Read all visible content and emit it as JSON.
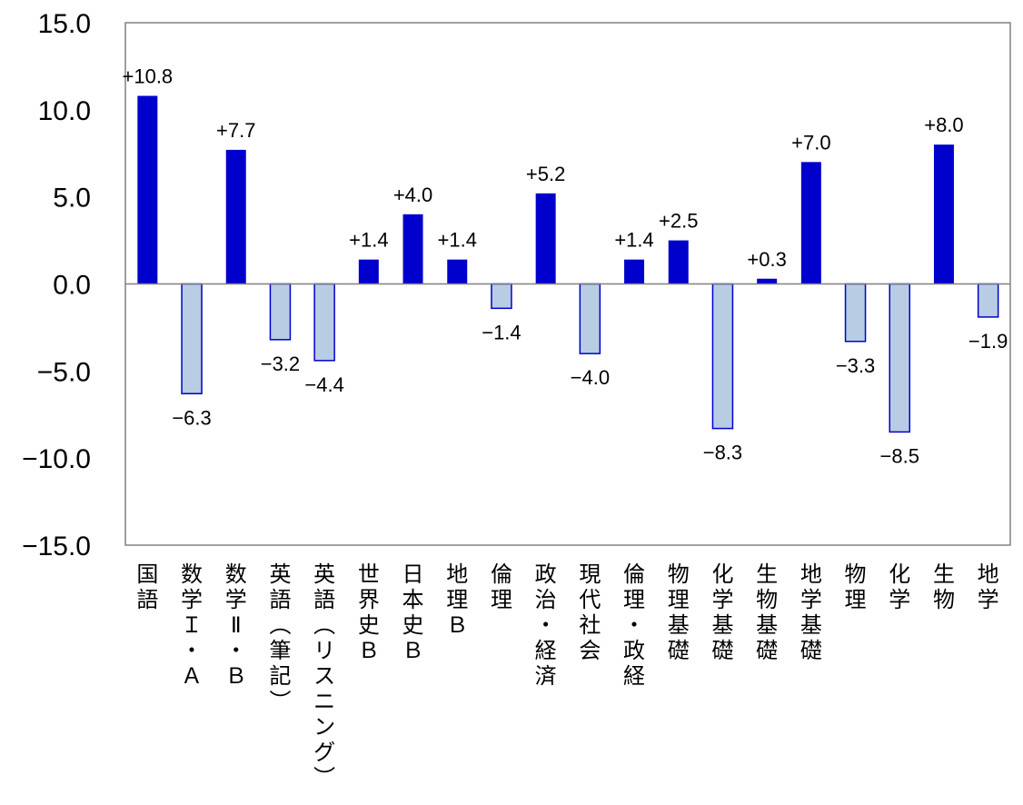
{
  "chart_data": {
    "type": "bar",
    "title": "",
    "xlabel": "",
    "ylabel": "",
    "ylim": [
      -15,
      15
    ],
    "yticks": [
      15,
      10,
      5,
      0,
      -5,
      -10,
      -15
    ],
    "ytick_labels": [
      "15.0",
      "10.0",
      "5.0",
      "0.0",
      "−5.0",
      "−10.0",
      "−15.0"
    ],
    "grid": false,
    "legend": "none",
    "colors": {
      "positive_fill": "#0000cc",
      "negative_fill": "#b8cce4",
      "negative_stroke": "#0000cc",
      "axis": "#808080"
    },
    "categories": [
      "国語",
      "数学Ⅰ・A",
      "数学Ⅱ・B",
      "英語（筆記）",
      "英語（リスニング）",
      "世界史B",
      "日本史B",
      "地理B",
      "倫理",
      "政治・経済",
      "現代社会",
      "倫理・政経",
      "物理基礎",
      "化学基礎",
      "生物基礎",
      "地学基礎",
      "物理",
      "化学",
      "生物",
      "地学"
    ],
    "category_labels": [
      "国語",
      "数学Ｉ・Ａ",
      "数学Ⅱ・Ｂ",
      "英語︵筆記︶",
      "英語︵リスニング︶",
      "世界史Ｂ",
      "日本史Ｂ",
      "地理Ｂ",
      "倫理",
      "政治・経済",
      "現代社会",
      "倫理・政経",
      "物理基礎",
      "化学基礎",
      "生物基礎",
      "地学基礎",
      "物理",
      "化学",
      "生物",
      "地学"
    ],
    "values": [
      10.8,
      -6.3,
      7.7,
      -3.2,
      -4.4,
      1.4,
      4.0,
      1.4,
      -1.4,
      5.2,
      -4.0,
      1.4,
      2.5,
      -8.3,
      0.3,
      7.0,
      -3.3,
      -8.5,
      8.0,
      -1.9
    ],
    "data_labels": [
      "+10.8",
      "−6.3",
      "+7.7",
      "−3.2",
      "−4.4",
      "+1.4",
      "+4.0",
      "+1.4",
      "−1.4",
      "+5.2",
      "−4.0",
      "+1.4",
      "+2.5",
      "−8.3",
      "+0.3",
      "+7.0",
      "−3.3",
      "−8.5",
      "+8.0",
      "−1.9"
    ]
  }
}
